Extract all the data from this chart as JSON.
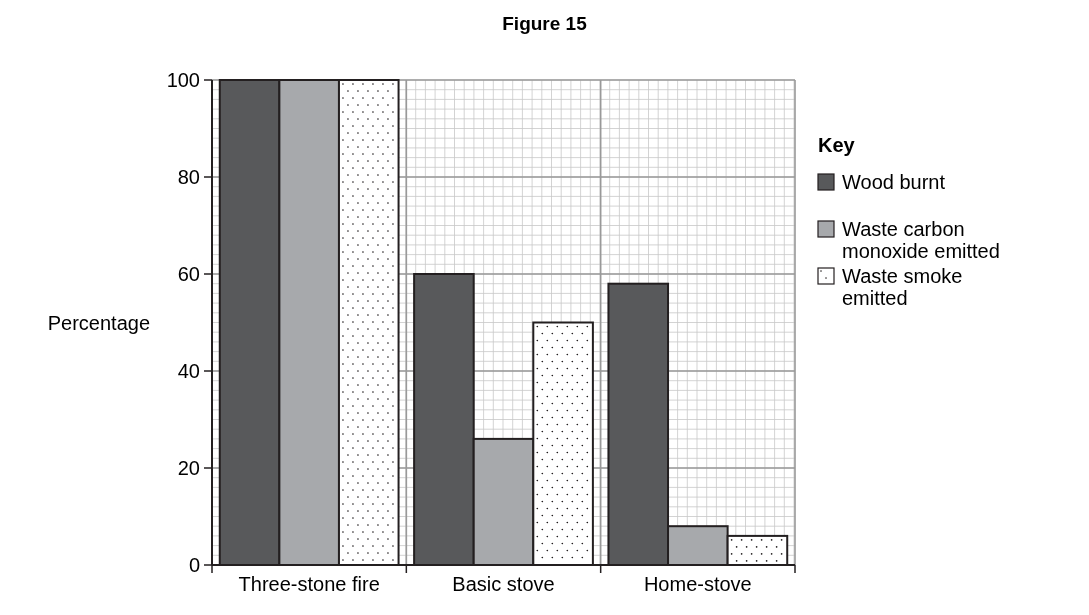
{
  "chart_data": {
    "type": "bar",
    "title": "Figure 15",
    "ylabel": "Percentage",
    "legend_title": "Key",
    "categories": [
      "Three-stone fire",
      "Basic stove",
      "Home-stove"
    ],
    "series": [
      {
        "name": "Wood burnt",
        "color": "#58595b",
        "values": [
          100,
          60,
          58
        ]
      },
      {
        "name": "Waste carbon monoxide emitted",
        "color": "#a7a9ac",
        "values": [
          100,
          26,
          8
        ]
      },
      {
        "name": "Waste smoke emitted",
        "color": "#ffffff",
        "values": [
          100,
          50,
          6
        ]
      }
    ],
    "ylim": [
      0,
      100
    ],
    "yticks": [
      0,
      20,
      40,
      60,
      80,
      100
    ],
    "grid": true,
    "legend": "right"
  }
}
